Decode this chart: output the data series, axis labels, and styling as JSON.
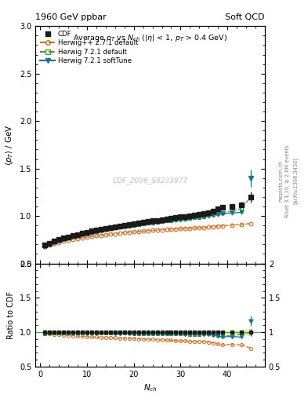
{
  "title_top": "1960 GeV ppbar",
  "title_right": "Soft QCD",
  "ylabel_main": "$\\langle p_T \\rangle$ / GeV",
  "ylabel_ratio": "Ratio to CDF",
  "xlabel": "$N_{ch}$",
  "rivet_label": "Rivet 3.1.10, ≥ 2.6M events",
  "arxiv_label": "[arXiv:1306.3436]",
  "mcplots_label": "mcplots.cern.ch",
  "watermark": "CDF_2009_S8233977",
  "ylim_main": [
    0.5,
    3.0
  ],
  "ylim_ratio": [
    0.5,
    2.0
  ],
  "xlim": [
    -1,
    48
  ],
  "cdf_x": [
    1,
    2,
    3,
    4,
    5,
    6,
    7,
    8,
    9,
    10,
    11,
    12,
    13,
    14,
    15,
    16,
    17,
    18,
    19,
    20,
    21,
    22,
    23,
    24,
    25,
    26,
    27,
    28,
    29,
    30,
    31,
    32,
    33,
    34,
    35,
    36,
    37,
    38,
    39,
    41,
    43,
    45
  ],
  "cdf_y": [
    0.695,
    0.714,
    0.733,
    0.75,
    0.766,
    0.78,
    0.793,
    0.806,
    0.818,
    0.829,
    0.84,
    0.85,
    0.86,
    0.869,
    0.878,
    0.887,
    0.895,
    0.903,
    0.911,
    0.919,
    0.927,
    0.934,
    0.941,
    0.948,
    0.955,
    0.962,
    0.969,
    0.976,
    0.982,
    0.989,
    0.996,
    1.002,
    1.009,
    1.016,
    1.023,
    1.03,
    1.052,
    1.075,
    1.095,
    1.1,
    1.118,
    1.2
  ],
  "cdf_yerr": [
    0.025,
    0.018,
    0.015,
    0.013,
    0.012,
    0.011,
    0.01,
    0.009,
    0.009,
    0.008,
    0.008,
    0.008,
    0.008,
    0.008,
    0.007,
    0.007,
    0.007,
    0.007,
    0.007,
    0.007,
    0.007,
    0.007,
    0.007,
    0.007,
    0.007,
    0.007,
    0.007,
    0.007,
    0.007,
    0.007,
    0.007,
    0.008,
    0.008,
    0.008,
    0.009,
    0.01,
    0.012,
    0.015,
    0.018,
    0.022,
    0.03,
    0.06
  ],
  "herwig_pp_x": [
    1,
    2,
    3,
    4,
    5,
    6,
    7,
    8,
    9,
    10,
    11,
    12,
    13,
    14,
    15,
    16,
    17,
    18,
    19,
    20,
    21,
    22,
    23,
    24,
    25,
    26,
    27,
    28,
    29,
    30,
    31,
    32,
    33,
    34,
    35,
    36,
    37,
    38,
    39,
    41,
    43,
    45
  ],
  "herwig_pp_y": [
    0.678,
    0.695,
    0.71,
    0.722,
    0.733,
    0.743,
    0.752,
    0.761,
    0.769,
    0.776,
    0.783,
    0.79,
    0.796,
    0.802,
    0.808,
    0.813,
    0.818,
    0.823,
    0.828,
    0.832,
    0.836,
    0.84,
    0.844,
    0.848,
    0.851,
    0.855,
    0.858,
    0.861,
    0.864,
    0.867,
    0.87,
    0.872,
    0.875,
    0.878,
    0.88,
    0.883,
    0.888,
    0.892,
    0.896,
    0.904,
    0.912,
    0.92
  ],
  "herwig721_x": [
    1,
    2,
    3,
    4,
    5,
    6,
    7,
    8,
    9,
    10,
    11,
    12,
    13,
    14,
    15,
    16,
    17,
    18,
    19,
    20,
    21,
    22,
    23,
    24,
    25,
    26,
    27,
    28,
    29,
    30,
    31,
    32,
    33,
    34,
    35,
    36,
    37,
    38,
    39,
    41,
    43,
    45
  ],
  "herwig721_y": [
    0.682,
    0.705,
    0.725,
    0.742,
    0.758,
    0.772,
    0.785,
    0.797,
    0.808,
    0.819,
    0.829,
    0.839,
    0.848,
    0.857,
    0.866,
    0.874,
    0.882,
    0.89,
    0.897,
    0.904,
    0.911,
    0.918,
    0.924,
    0.93,
    0.936,
    0.942,
    0.948,
    0.953,
    0.959,
    0.964,
    0.97,
    0.975,
    0.981,
    0.988,
    0.996,
    1.005,
    1.015,
    1.025,
    1.035,
    1.05,
    1.08,
    1.2
  ],
  "herwig721soft_x": [
    1,
    2,
    3,
    4,
    5,
    6,
    7,
    8,
    9,
    10,
    11,
    12,
    13,
    14,
    15,
    16,
    17,
    18,
    19,
    20,
    21,
    22,
    23,
    24,
    25,
    26,
    27,
    28,
    29,
    30,
    31,
    32,
    33,
    34,
    35,
    36,
    37,
    38,
    39,
    41,
    43,
    45
  ],
  "herwig721soft_y": [
    0.68,
    0.703,
    0.722,
    0.74,
    0.756,
    0.77,
    0.783,
    0.796,
    0.807,
    0.818,
    0.828,
    0.838,
    0.847,
    0.856,
    0.865,
    0.873,
    0.881,
    0.889,
    0.896,
    0.903,
    0.91,
    0.917,
    0.923,
    0.929,
    0.935,
    0.941,
    0.947,
    0.952,
    0.958,
    0.963,
    0.969,
    0.974,
    0.98,
    0.987,
    0.994,
    1.001,
    1.008,
    1.015,
    1.022,
    1.032,
    1.038,
    1.4
  ],
  "herwig721soft_yerr_last": 0.09,
  "color_cdf": "#1a1a1a",
  "color_herwig_pp": "#d46b20",
  "color_herwig721": "#4a9a30",
  "color_herwig721soft": "#207090",
  "ratio_band_color": "#c8f080",
  "ratio_band_alpha": 0.6,
  "bg_color": "#ffffff"
}
